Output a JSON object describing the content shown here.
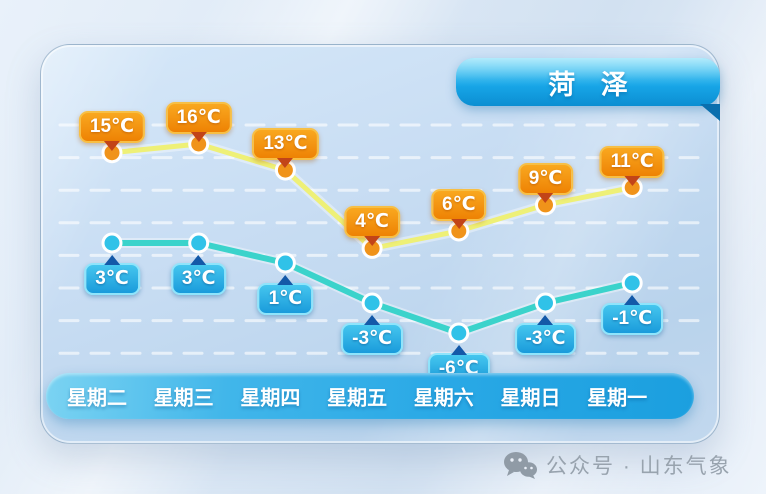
{
  "banner": {
    "city": "菏 泽"
  },
  "watermark": {
    "text": "公众号 · 山东气象",
    "icon": "wechat-icon"
  },
  "chart_data": {
    "type": "line",
    "title": "菏 泽",
    "categories": [
      "星期二",
      "星期三",
      "星期四",
      "星期五",
      "星期六",
      "星期日",
      "星期一"
    ],
    "series": [
      {
        "id": "high",
        "values": [
          15,
          16,
          13,
          4,
          6,
          9,
          11
        ],
        "labels": [
          "15℃",
          "16℃",
          "13℃",
          "4℃",
          "6℃",
          "9℃",
          "11℃"
        ]
      },
      {
        "id": "low",
        "values": [
          3,
          3,
          1,
          -3,
          -6,
          -3,
          -1
        ],
        "labels": [
          "3℃",
          "3℃",
          "1℃",
          "-3℃",
          "-6℃",
          "-3℃",
          "-1℃"
        ]
      }
    ],
    "unit": "℃",
    "legend": "none",
    "grid": "horizontal-dashed",
    "xlabel": "",
    "ylabel": ""
  },
  "colors": {
    "high_line": "#eef077",
    "high_dot": "#f0931a",
    "high_badge_top": "#f9a81f",
    "high_badge_bottom": "#ee8204",
    "high_badge_border": "#f7bf45",
    "high_pointer": "#c24418",
    "low_line": "#3bd3cb",
    "low_dot": "#30c2e8",
    "low_badge_top": "#45c6ee",
    "low_badge_bottom": "#1a9bdb",
    "low_badge_border": "#8fe4fb",
    "low_pointer": "#1459a8",
    "banner_top": "#55d2f8",
    "banner_mid": "#18a7e8",
    "banner_bottom": "#0b8ed2",
    "banner_fold": "#0a6fae",
    "bar_main": "#2aa9e6"
  }
}
